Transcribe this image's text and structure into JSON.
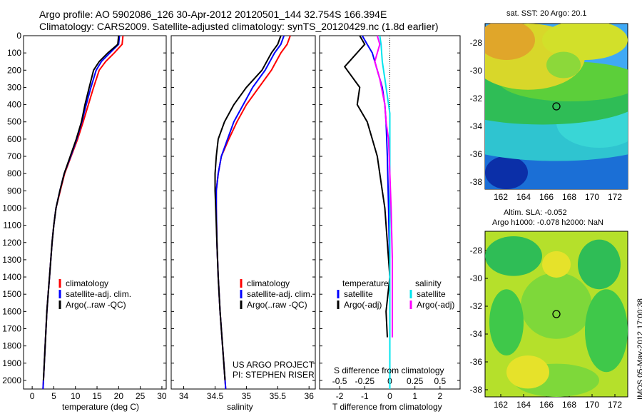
{
  "header": {
    "line1": "Argo profile: AO 5902086_126 30-Apr-2012 20120501_144 32.754S 166.394E",
    "line2": "Climatology: CARS2009. Satellite-adjusted climatology: synTS_20120429.nc (1.8d earlier)"
  },
  "colors": {
    "climatology": "#ff0000",
    "satellite": "#0000ff",
    "argo": "#000000",
    "salinity_sat": "#00e5ee",
    "salinity_argo": "#ff00ff"
  },
  "chart_data": [
    {
      "type": "line",
      "xlabel": "temperature (deg C)",
      "ylabel": "",
      "xlim": [
        -2,
        31
      ],
      "ylim": [
        2050,
        0
      ],
      "xticks": [
        "0",
        "5",
        "10",
        "15",
        "20",
        "25",
        "30"
      ],
      "yticks": [
        "0",
        "100",
        "200",
        "300",
        "400",
        "500",
        "600",
        "700",
        "800",
        "900",
        "1000",
        "1100",
        "1200",
        "1300",
        "1400",
        "1500",
        "1600",
        "1700",
        "1800",
        "1900",
        "2000"
      ],
      "legend": [
        "climatology",
        "satellite-adj. clim.",
        "Argo(..raw -QC)"
      ],
      "series": [
        {
          "name": "climatology",
          "color": "#ff0000",
          "points": [
            [
              21,
              0
            ],
            [
              20.8,
              50
            ],
            [
              19,
              100
            ],
            [
              17,
              150
            ],
            [
              15.5,
              200
            ],
            [
              14.2,
              300
            ],
            [
              13,
              400
            ],
            [
              11.8,
              500
            ],
            [
              10.5,
              600
            ],
            [
              9,
              700
            ],
            [
              7.5,
              800
            ],
            [
              6.5,
              900
            ],
            [
              5.5,
              1000
            ],
            [
              5,
              1100
            ],
            [
              4.6,
              1200
            ],
            [
              4.3,
              1300
            ],
            [
              4,
              1400
            ],
            [
              3.7,
              1500
            ],
            [
              3.4,
              1600
            ],
            [
              3.2,
              1700
            ],
            [
              3,
              1800
            ],
            [
              2.8,
              1900
            ],
            [
              2.6,
              2000
            ],
            [
              2.5,
              2050
            ]
          ]
        },
        {
          "name": "satellite-adj. clim.",
          "color": "#0000ff",
          "points": [
            [
              20.2,
              0
            ],
            [
              20,
              50
            ],
            [
              18,
              100
            ],
            [
              16,
              150
            ],
            [
              14.8,
              200
            ],
            [
              13.6,
              300
            ],
            [
              12.5,
              400
            ],
            [
              11.5,
              500
            ],
            [
              10.3,
              600
            ],
            [
              8.9,
              700
            ],
            [
              7.4,
              800
            ],
            [
              6.4,
              900
            ],
            [
              5.5,
              1000
            ],
            [
              5,
              1100
            ],
            [
              4.6,
              1200
            ],
            [
              4.3,
              1300
            ],
            [
              4,
              1400
            ],
            [
              3.7,
              1500
            ],
            [
              3.4,
              1600
            ],
            [
              3.2,
              1700
            ],
            [
              3,
              1800
            ],
            [
              2.8,
              1900
            ],
            [
              2.6,
              2000
            ],
            [
              2.5,
              2050
            ]
          ]
        },
        {
          "name": "Argo(..raw -QC)",
          "color": "#000000",
          "points": [
            [
              20,
              0
            ],
            [
              19.8,
              50
            ],
            [
              17.5,
              100
            ],
            [
              15.5,
              150
            ],
            [
              14.2,
              200
            ],
            [
              13.2,
              300
            ],
            [
              12.2,
              400
            ],
            [
              11.4,
              500
            ],
            [
              10.2,
              600
            ],
            [
              8.8,
              700
            ],
            [
              7.4,
              800
            ],
            [
              6.4,
              900
            ],
            [
              5.5,
              1000
            ],
            [
              5,
              1100
            ],
            [
              4.6,
              1200
            ],
            [
              4.3,
              1300
            ],
            [
              4,
              1400
            ],
            [
              3.7,
              1500
            ],
            [
              3.4,
              1600
            ],
            [
              3.2,
              1700
            ],
            [
              3,
              1800
            ],
            [
              2.8,
              1900
            ],
            [
              2.6,
              2000
            ]
          ]
        }
      ]
    },
    {
      "type": "line",
      "xlabel": "salinity",
      "ylabel": "",
      "xlim": [
        33.8,
        36.1
      ],
      "ylim": [
        2050,
        0
      ],
      "xticks": [
        "34",
        "34.5",
        "35",
        "35.5",
        "36"
      ],
      "legend": [
        "climatology",
        "satellite-adj. clim.",
        "Argo(..raw -QC)"
      ],
      "annotation": [
        "US ARGO PROJECT",
        "PI: STEPHEN RISER"
      ],
      "series": [
        {
          "name": "climatology",
          "color": "#ff0000",
          "points": [
            [
              35.7,
              0
            ],
            [
              35.65,
              50
            ],
            [
              35.55,
              100
            ],
            [
              35.4,
              200
            ],
            [
              35.2,
              300
            ],
            [
              35,
              400
            ],
            [
              34.85,
              500
            ],
            [
              34.72,
              600
            ],
            [
              34.6,
              700
            ],
            [
              34.55,
              800
            ],
            [
              34.52,
              900
            ],
            [
              34.52,
              1000
            ],
            [
              34.53,
              1200
            ],
            [
              34.55,
              1400
            ],
            [
              34.58,
              1600
            ],
            [
              34.62,
              1800
            ],
            [
              34.66,
              2000
            ],
            [
              34.67,
              2050
            ]
          ]
        },
        {
          "name": "satellite-adj. clim.",
          "color": "#0000ff",
          "points": [
            [
              35.6,
              0
            ],
            [
              35.55,
              50
            ],
            [
              35.45,
              100
            ],
            [
              35.3,
              200
            ],
            [
              35.1,
              300
            ],
            [
              34.95,
              400
            ],
            [
              34.8,
              500
            ],
            [
              34.7,
              600
            ],
            [
              34.6,
              700
            ],
            [
              34.55,
              800
            ],
            [
              34.52,
              900
            ],
            [
              34.52,
              1000
            ],
            [
              34.53,
              1200
            ],
            [
              34.55,
              1400
            ],
            [
              34.58,
              1600
            ],
            [
              34.62,
              1800
            ],
            [
              34.66,
              2000
            ],
            [
              34.67,
              2050
            ]
          ]
        },
        {
          "name": "Argo(..raw -QC)",
          "color": "#000000",
          "points": [
            [
              35.55,
              0
            ],
            [
              35.5,
              50
            ],
            [
              35.4,
              100
            ],
            [
              35.25,
              200
            ],
            [
              35,
              300
            ],
            [
              34.8,
              400
            ],
            [
              34.65,
              500
            ],
            [
              34.55,
              600
            ],
            [
              34.52,
              700
            ],
            [
              34.5,
              800
            ],
            [
              34.5,
              900
            ],
            [
              34.51,
              1000
            ],
            [
              34.53,
              1200
            ],
            [
              34.55,
              1400
            ],
            [
              34.58,
              1600
            ],
            [
              34.62,
              1800
            ],
            [
              34.66,
              2000
            ]
          ]
        }
      ]
    },
    {
      "type": "line",
      "xlabel": "T difference from climatology",
      "xlabel_top": "S difference from climatology",
      "xlim": [
        -2.8,
        2.8
      ],
      "ylim": [
        2050,
        0
      ],
      "xticks": [
        "-2",
        "-1",
        "0",
        "1",
        "2"
      ],
      "xticks_top": [
        "-0.5",
        "-0.25",
        "0",
        "0.25",
        "0.5"
      ],
      "legend_temperature": [
        "temperature",
        "satellite",
        "Argo(-adj)"
      ],
      "legend_salinity": [
        "salinity",
        "satellite",
        "Argo(-adj)"
      ],
      "series": [
        {
          "name": "satellite",
          "color": "#0000ff",
          "points": [
            [
              -1.1,
              0
            ],
            [
              -0.9,
              50
            ],
            [
              -0.7,
              100
            ],
            [
              -0.5,
              200
            ],
            [
              -0.3,
              300
            ],
            [
              -0.2,
              400
            ],
            [
              -0.15,
              500
            ],
            [
              -0.1,
              700
            ],
            [
              -0.05,
              1000
            ],
            [
              0,
              1400
            ],
            [
              0,
              1800
            ],
            [
              0,
              2050
            ]
          ]
        },
        {
          "name": "Argo(-adj)",
          "color": "#000000",
          "points": [
            [
              -1.2,
              0
            ],
            [
              -1,
              50
            ],
            [
              -1.8,
              180
            ],
            [
              -1.2,
              300
            ],
            [
              -1.3,
              400
            ],
            [
              -0.9,
              500
            ],
            [
              -0.7,
              600
            ],
            [
              -0.5,
              700
            ],
            [
              -0.4,
              800
            ],
            [
              -0.3,
              900
            ],
            [
              -0.2,
              1000
            ],
            [
              -0.1,
              1200
            ],
            [
              0,
              1400
            ],
            [
              -0.15,
              1600
            ],
            [
              -0.1,
              1750
            ]
          ]
        },
        {
          "name": "salinity satellite",
          "color": "#00e5ee",
          "points": [
            [
              -0.4,
              0
            ],
            [
              -0.35,
              50
            ],
            [
              -0.3,
              150
            ],
            [
              -0.2,
              250
            ],
            [
              -0.1,
              350
            ],
            [
              0,
              450
            ],
            [
              0,
              700
            ],
            [
              0,
              1000
            ],
            [
              0,
              1500
            ],
            [
              0,
              2050
            ]
          ]
        },
        {
          "name": "salinity Argo(-adj)",
          "color": "#ff00ff",
          "points": [
            [
              -0.5,
              0
            ],
            [
              -0.4,
              50
            ],
            [
              -0.6,
              150
            ],
            [
              -0.4,
              250
            ],
            [
              -0.2,
              400
            ],
            [
              -0.15,
              500
            ],
            [
              -0.05,
              600
            ],
            [
              0,
              800
            ],
            [
              0.05,
              1000
            ],
            [
              0.1,
              1300
            ],
            [
              0.1,
              1600
            ],
            [
              0.1,
              1750
            ]
          ]
        }
      ]
    }
  ],
  "maps": {
    "sst": {
      "title": "sat. SST: 20 Argo: 20.1",
      "xticks": [
        "162",
        "164",
        "166",
        "168",
        "170",
        "172"
      ],
      "yticks": [
        "-28",
        "-30",
        "-32",
        "-34",
        "-36",
        "-38"
      ]
    },
    "sla": {
      "title_line1": "Altim. SLA: -0.052",
      "title_line2": "Argo h1000: -0.078 h2000: NaN",
      "xticks": [
        "162",
        "164",
        "166",
        "168",
        "170",
        "172"
      ],
      "yticks": [
        "-28",
        "-30",
        "-32",
        "-34",
        "-36",
        "-38"
      ]
    }
  },
  "footer": {
    "side_text": "IMOS 05-May-2012 17:00:38"
  }
}
